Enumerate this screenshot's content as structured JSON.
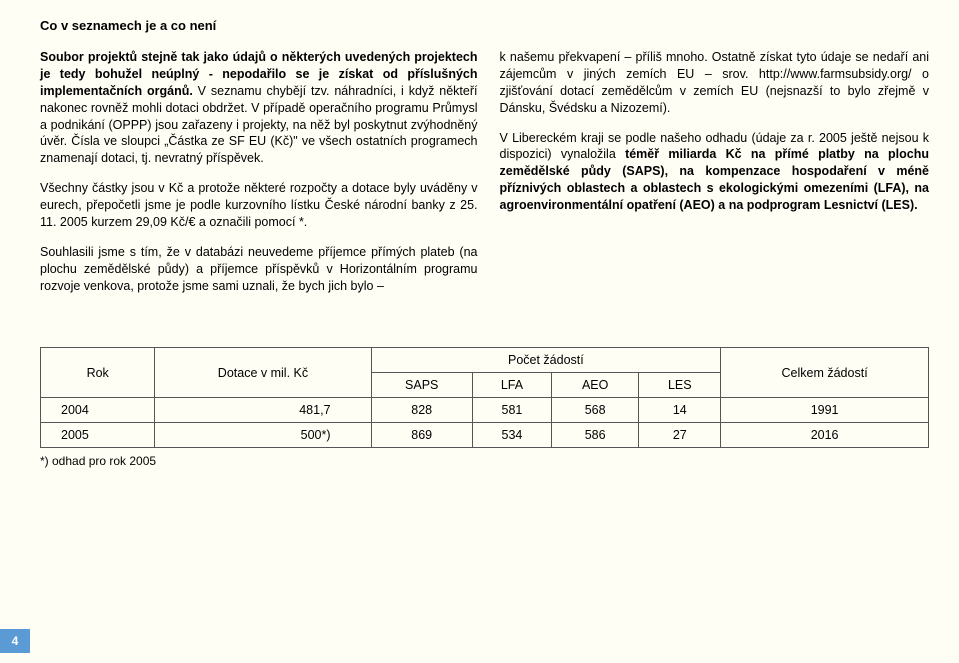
{
  "heading": "Co v seznamech je a co není",
  "left": {
    "p1a": "Soubor projektů stejně tak jako údajů o některých uvedených projektech je tedy bohužel neúplný - nepodařilo se je získat od příslušných implementačních orgánů.",
    "p1b": " V seznamu chybějí tzv. náhradníci, i když někteří nakonec rovněž mohli dotaci obdržet. V případě operačního programu Průmysl a podnikání (OPPP) jsou zařazeny i projekty, na něž byl poskytnut zvýhodněný úvěr. Čísla ve sloupci „Částka ze SF EU (Kč)\" ve všech ostatních programech znamenají dotaci, tj. nevratný příspěvek.",
    "p2": "Všechny částky jsou v Kč a protože některé rozpočty a dotace byly uváděny v eurech, přepočetli jsme je podle kurzovního lístku České národní banky z 25. 11. 2005 kurzem 29,09 Kč/€ a označili pomocí *.",
    "p3": "Souhlasili jsme s tím, že v databázi neuvedeme příjemce přímých plateb (na plochu zemědělské půdy) a příjemce příspěvků v Horizontálním programu rozvoje venkova, protože jsme sami uznali, že bych jich bylo –"
  },
  "right": {
    "p1": "k našemu překvapení – příliš mnoho. Ostatně získat tyto údaje se nedaří ani zájemcům v jiných zemích EU – srov. http://www.farmsubsidy.org/ o zjišťování dotací zemědělcům v zemích EU (nejsnazší to bylo zřejmě v Dánsku, Švédsku a Nizozemí).",
    "p2a": "V Libereckém kraji se podle našeho odhadu (údaje za r. 2005 ještě nejsou k dispozici) vynaložila ",
    "p2b": "téměř miliarda Kč na přímé platby na plochu zemědělské půdy (SAPS), na kompenzace hospodaření v méně příznivých oblastech a oblastech s ekologickými omezeními (LFA), na agroenvironmentální opatření (AEO) a na podprogram Lesnictví (LES)."
  },
  "table": {
    "headers": {
      "rok": "Rok",
      "dotace": "Dotace v mil. Kč",
      "pocet": "Počet žádostí",
      "saps": "SAPS",
      "lfa": "LFA",
      "aeo": "AEO",
      "les": "LES",
      "celkem": "Celkem žádostí"
    },
    "rows": [
      {
        "rok": "2004",
        "dotace": "481,7",
        "saps": "828",
        "lfa": "581",
        "aeo": "568",
        "les": "14",
        "celkem": "1991"
      },
      {
        "rok": "2005",
        "dotace": "500*)",
        "saps": "869",
        "lfa": "534",
        "aeo": "586",
        "les": "27",
        "celkem": "2016"
      }
    ]
  },
  "footnote": "*) odhad pro rok 2005",
  "pagenum": "4"
}
